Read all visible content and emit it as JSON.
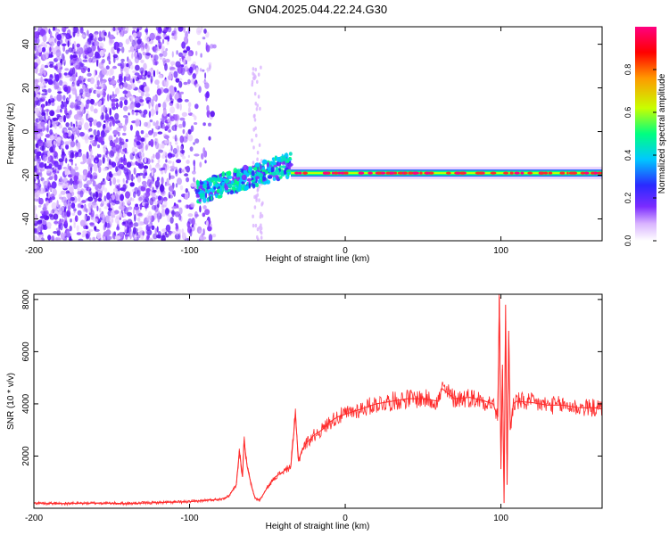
{
  "figure": {
    "title": "GN04.2025.044.22.24.G30"
  },
  "chart_data": [
    {
      "type": "heatmap",
      "xlabel": "Height of straight line (km)",
      "ylabel": "Frequency (Hz)",
      "xlim": [
        -200,
        165
      ],
      "ylim": [
        -50,
        48
      ],
      "xticks": [
        -200,
        -100,
        0,
        100
      ],
      "yticks": [
        -40,
        -20,
        0,
        20,
        40
      ],
      "colorbar": {
        "label": "Normalized spectral amplitude",
        "range": [
          0,
          1
        ],
        "ticks": [
          "0.0",
          "0.2",
          "0.4",
          "0.6",
          "0.8"
        ],
        "colormap": [
          "#ffffff",
          "#d9b3ff",
          "#7b2cff",
          "#2a2aff",
          "#00c8ff",
          "#00ff80",
          "#c8ff00",
          "#ff9900",
          "#ff0000",
          "#ff0080"
        ]
      },
      "features": [
        {
          "name": "noise",
          "x": [
            -200,
            -85
          ],
          "frequency_hz": [
            -50,
            48
          ]
        },
        {
          "name": "sparse noise",
          "x": [
            -60,
            -53
          ],
          "frequency_hz": [
            -50,
            30
          ]
        },
        {
          "name": "signal track",
          "x": [
            -95,
            -35
          ],
          "frequency_hz": [
            -28,
            -15
          ]
        },
        {
          "name": "carrier line",
          "x": [
            -35,
            165
          ],
          "frequency_hz": -19
        }
      ]
    },
    {
      "type": "line",
      "xlabel": "Height of straight line (km)",
      "ylabel": "SNR (10 * v/v)",
      "xlim": [
        -200,
        165
      ],
      "ylim": [
        0,
        8200
      ],
      "xticks": [
        -200,
        -100,
        0,
        100
      ],
      "yticks": [
        2000,
        4000,
        6000,
        8000
      ],
      "color": "#ff2a2a",
      "series": [
        {
          "x": [
            -200,
            -180,
            -160,
            -140,
            -120,
            -100,
            -90,
            -80,
            -75,
            -70,
            -68,
            -66,
            -65,
            -63,
            -60,
            -58,
            -55,
            -50,
            -45,
            -40,
            -35,
            -32,
            -30,
            -28,
            -25,
            -20,
            -15,
            -10,
            -5,
            0,
            10,
            20,
            30,
            40,
            50,
            60,
            62,
            70,
            80,
            90,
            95,
            98,
            99,
            100,
            101,
            102,
            103,
            104,
            105,
            106,
            108,
            110,
            120,
            130,
            140,
            150,
            160,
            165
          ],
          "y": [
            200,
            180,
            200,
            180,
            220,
            250,
            300,
            350,
            450,
            900,
            2200,
            1200,
            2600,
            1600,
            800,
            400,
            300,
            800,
            1200,
            1400,
            1600,
            3600,
            1800,
            2200,
            2500,
            2800,
            3000,
            3300,
            3500,
            3600,
            3800,
            4000,
            4100,
            4200,
            4200,
            4100,
            4600,
            4200,
            4250,
            4100,
            4000,
            3500,
            8100,
            1500,
            5500,
            200,
            7800,
            900,
            6800,
            3000,
            4000,
            4100,
            4050,
            3950,
            3950,
            3850,
            3850,
            3800
          ]
        }
      ]
    }
  ]
}
